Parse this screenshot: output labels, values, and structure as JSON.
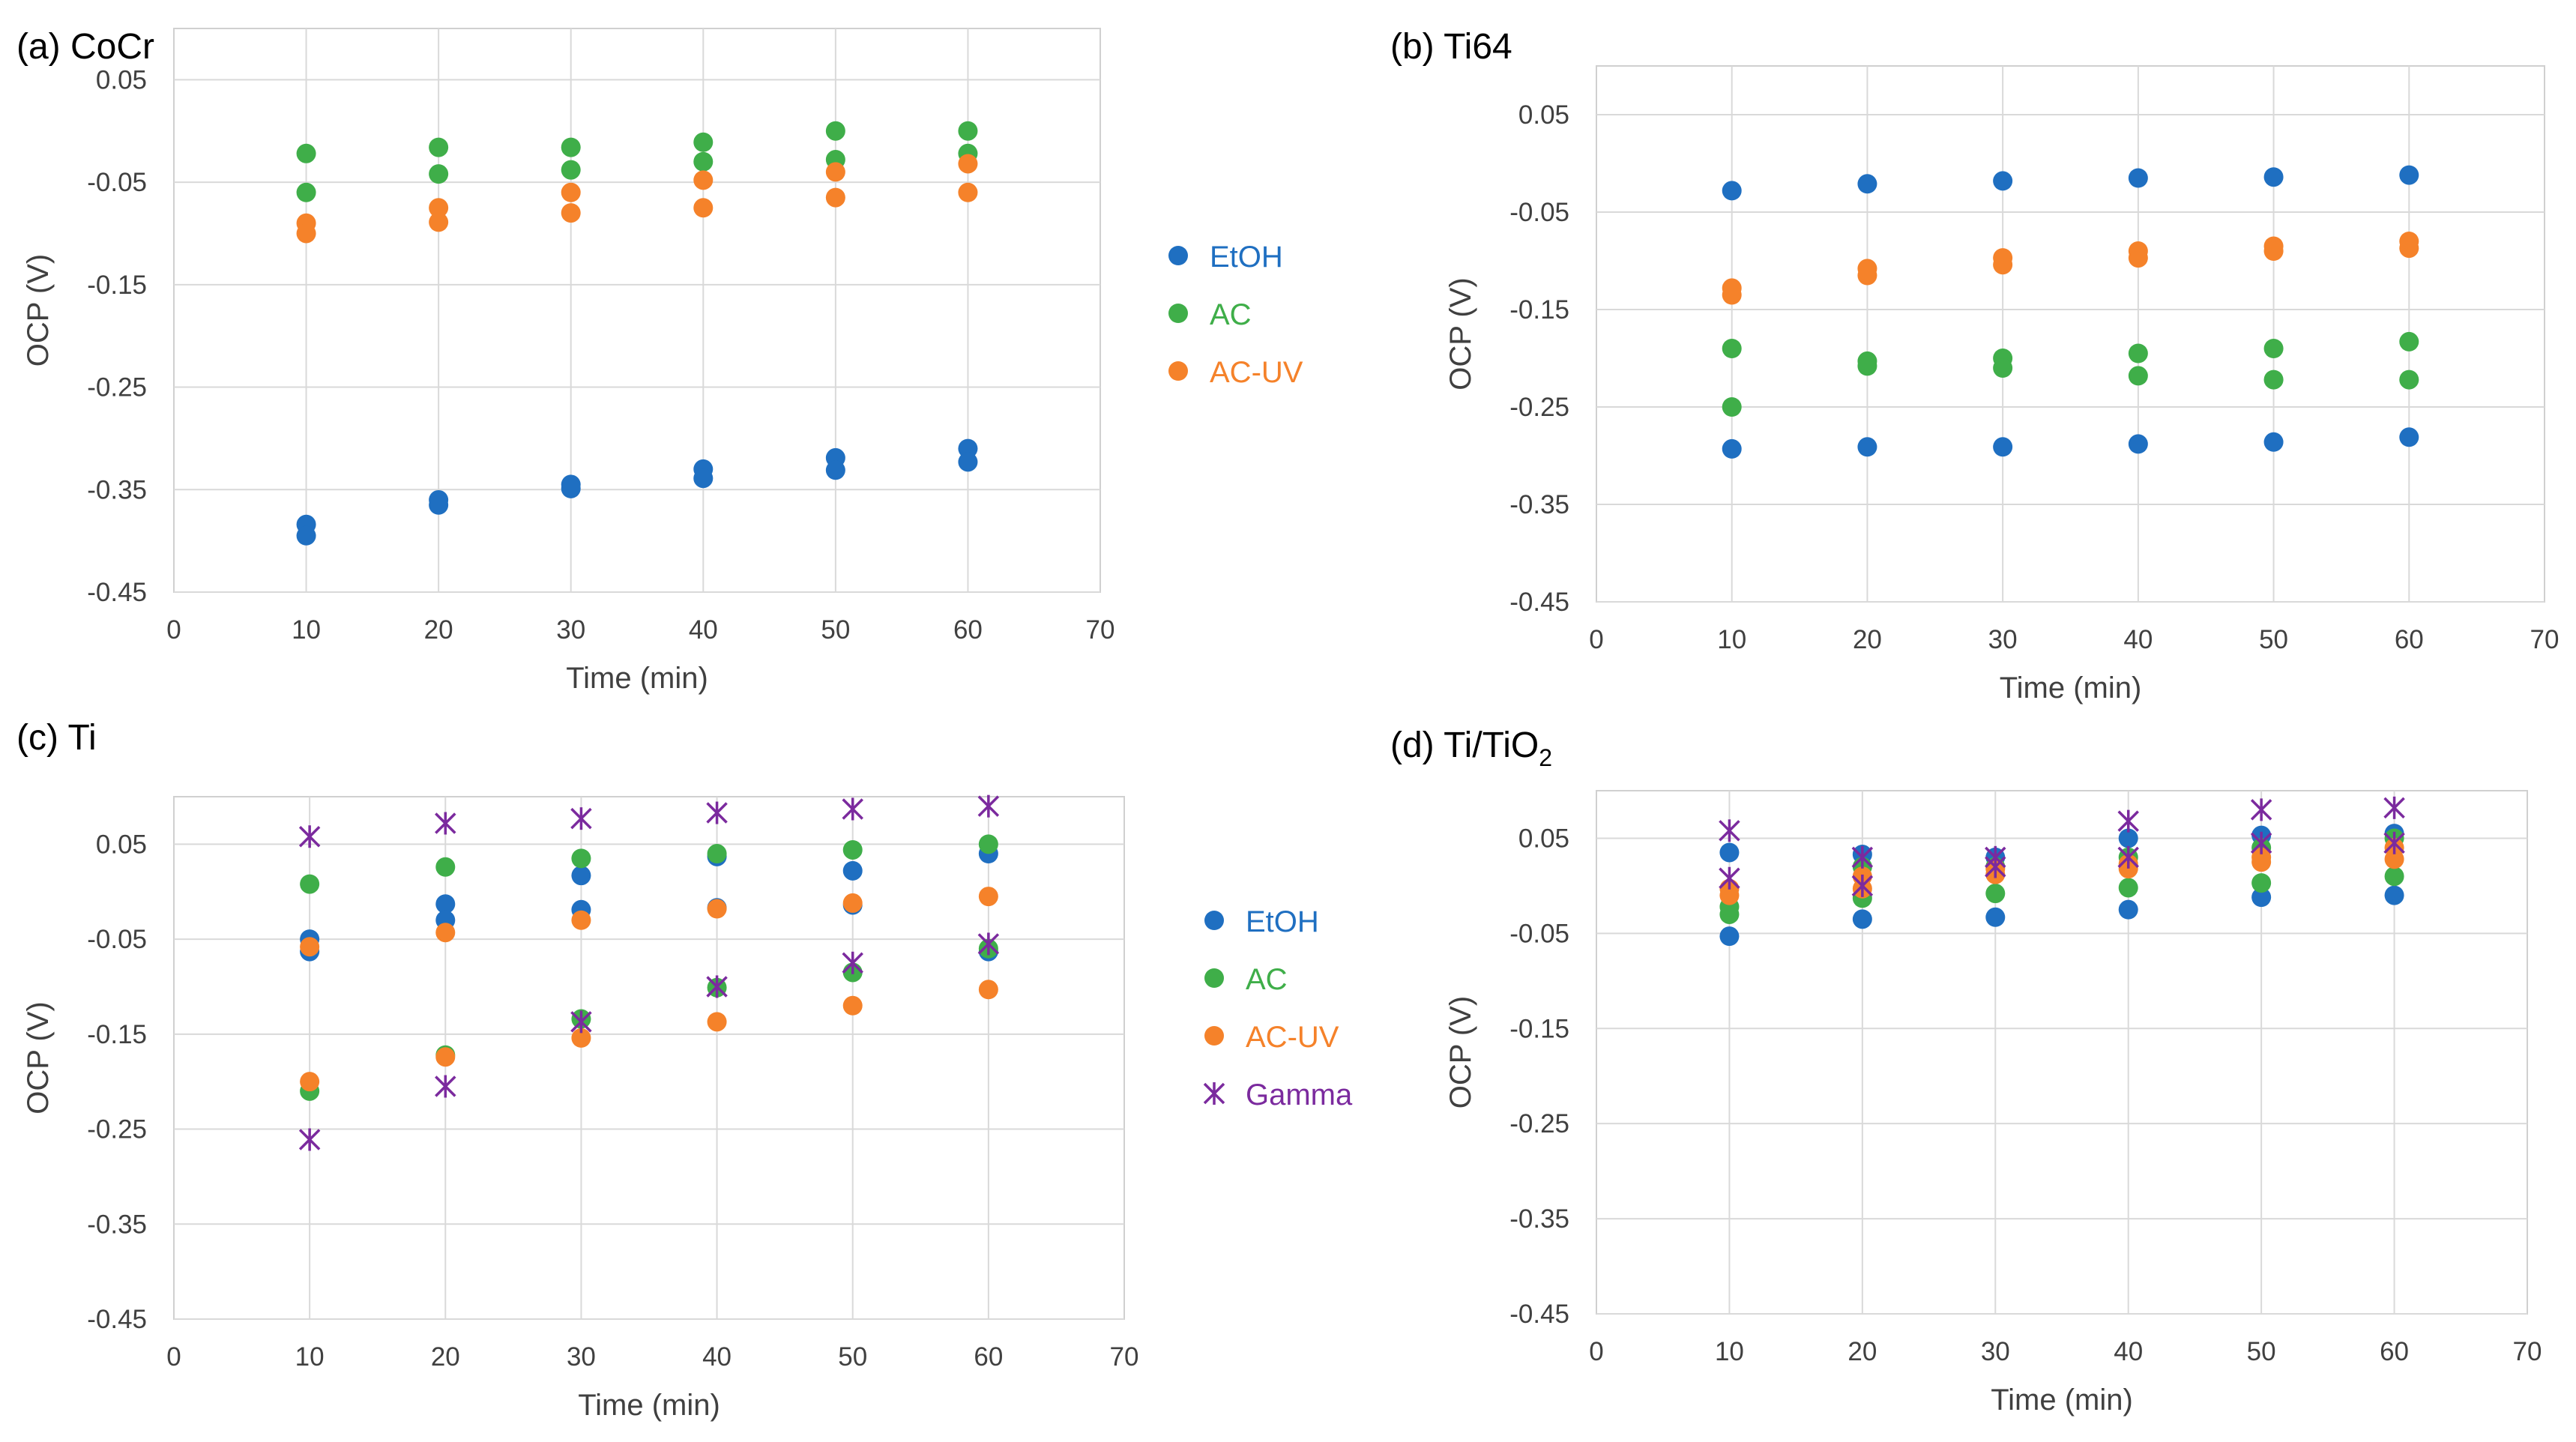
{
  "chart_data": [
    {
      "type": "scatter",
      "id": "a",
      "title": "(a) CoCr",
      "xlabel": "Time (min)",
      "ylabel": "OCP (V)",
      "xlim": [
        0,
        70
      ],
      "ylim": [
        -0.45,
        0.1
      ],
      "xticks": [
        0,
        10,
        20,
        30,
        40,
        50,
        60,
        70
      ],
      "yticks": [
        0.05,
        -0.05,
        -0.15,
        -0.25,
        -0.35,
        -0.45
      ],
      "grid": true,
      "legend": "right",
      "series": [
        {
          "name": "EtOH",
          "color": "#1f6fc1",
          "marker": "circle",
          "points": [
            [
              10,
              -0.384
            ],
            [
              10,
              -0.395
            ],
            [
              20,
              -0.36
            ],
            [
              20,
              -0.365
            ],
            [
              30,
              -0.345
            ],
            [
              30,
              -0.349
            ],
            [
              40,
              -0.33
            ],
            [
              40,
              -0.339
            ],
            [
              50,
              -0.319
            ],
            [
              50,
              -0.331
            ],
            [
              60,
              -0.31
            ],
            [
              60,
              -0.323
            ]
          ]
        },
        {
          "name": "AC",
          "color": "#3fae49",
          "marker": "circle",
          "points": [
            [
              10,
              -0.022
            ],
            [
              10,
              -0.06
            ],
            [
              20,
              -0.016
            ],
            [
              20,
              -0.042
            ],
            [
              30,
              -0.016
            ],
            [
              30,
              -0.038
            ],
            [
              40,
              -0.011
            ],
            [
              40,
              -0.03
            ],
            [
              50,
              0.0
            ],
            [
              50,
              -0.028
            ],
            [
              60,
              0.0
            ],
            [
              60,
              -0.022
            ]
          ]
        },
        {
          "name": "AC-UV",
          "color": "#f5822a",
          "marker": "circle",
          "points": [
            [
              10,
              -0.09
            ],
            [
              10,
              -0.1
            ],
            [
              20,
              -0.075
            ],
            [
              20,
              -0.089
            ],
            [
              30,
              -0.06
            ],
            [
              30,
              -0.08
            ],
            [
              40,
              -0.048
            ],
            [
              40,
              -0.075
            ],
            [
              50,
              -0.04
            ],
            [
              50,
              -0.065
            ],
            [
              60,
              -0.032
            ],
            [
              60,
              -0.06
            ]
          ]
        }
      ]
    },
    {
      "type": "scatter",
      "id": "b",
      "title": "(b)  Ti64",
      "xlabel": "Time (min)",
      "ylabel": "OCP (V)",
      "xlim": [
        0,
        70
      ],
      "ylim": [
        -0.45,
        0.1
      ],
      "xticks": [
        0,
        10,
        20,
        30,
        40,
        50,
        60,
        70
      ],
      "yticks": [
        0.05,
        -0.05,
        -0.15,
        -0.25,
        -0.35,
        -0.45
      ],
      "grid": true,
      "legend": "none",
      "series": [
        {
          "name": "EtOH",
          "color": "#1f6fc1",
          "marker": "circle",
          "points": [
            [
              10,
              -0.028
            ],
            [
              10,
              -0.293
            ],
            [
              20,
              -0.021
            ],
            [
              20,
              -0.291
            ],
            [
              30,
              -0.018
            ],
            [
              30,
              -0.291
            ],
            [
              40,
              -0.015
            ],
            [
              40,
              -0.288
            ],
            [
              50,
              -0.014
            ],
            [
              50,
              -0.286
            ],
            [
              60,
              -0.012
            ],
            [
              60,
              -0.281
            ]
          ]
        },
        {
          "name": "AC",
          "color": "#3fae49",
          "marker": "circle",
          "points": [
            [
              10,
              -0.19
            ],
            [
              10,
              -0.25
            ],
            [
              20,
              -0.203
            ],
            [
              20,
              -0.208
            ],
            [
              30,
              -0.2
            ],
            [
              30,
              -0.21
            ],
            [
              40,
              -0.195
            ],
            [
              40,
              -0.218
            ],
            [
              50,
              -0.19
            ],
            [
              50,
              -0.222
            ],
            [
              60,
              -0.183
            ],
            [
              60,
              -0.222
            ]
          ]
        },
        {
          "name": "AC-UV",
          "color": "#f5822a",
          "marker": "circle",
          "points": [
            [
              10,
              -0.128
            ],
            [
              10,
              -0.135
            ],
            [
              20,
              -0.108
            ],
            [
              20,
              -0.115
            ],
            [
              30,
              -0.097
            ],
            [
              30,
              -0.104
            ],
            [
              40,
              -0.09
            ],
            [
              40,
              -0.097
            ],
            [
              50,
              -0.085
            ],
            [
              50,
              -0.09
            ],
            [
              60,
              -0.08
            ],
            [
              60,
              -0.087
            ]
          ]
        }
      ]
    },
    {
      "type": "scatter",
      "id": "c",
      "title": "(c)  Ti",
      "xlabel": "Time (min)",
      "ylabel": "OCP (V)",
      "xlim": [
        0,
        70
      ],
      "ylim": [
        -0.45,
        0.1
      ],
      "xticks": [
        0,
        10,
        20,
        30,
        40,
        50,
        60,
        70
      ],
      "yticks": [
        0.05,
        -0.05,
        -0.15,
        -0.25,
        -0.35,
        -0.45
      ],
      "grid": true,
      "legend": "right",
      "series": [
        {
          "name": "EtOH",
          "color": "#1f6fc1",
          "marker": "circle",
          "points": [
            [
              10,
              -0.05
            ],
            [
              10,
              -0.063
            ],
            [
              20,
              -0.013
            ],
            [
              20,
              -0.03
            ],
            [
              30,
              0.017
            ],
            [
              30,
              -0.019
            ],
            [
              40,
              0.037
            ],
            [
              40,
              -0.017
            ],
            [
              50,
              0.022
            ],
            [
              50,
              -0.014
            ],
            [
              60,
              0.04
            ],
            [
              60,
              -0.063
            ]
          ]
        },
        {
          "name": "AC",
          "color": "#3fae49",
          "marker": "circle",
          "points": [
            [
              10,
              0.008
            ],
            [
              10,
              -0.21
            ],
            [
              20,
              0.026
            ],
            [
              20,
              -0.172
            ],
            [
              30,
              0.035
            ],
            [
              30,
              -0.134
            ],
            [
              40,
              0.04
            ],
            [
              40,
              -0.101
            ],
            [
              50,
              0.044
            ],
            [
              50,
              -0.085
            ],
            [
              60,
              0.05
            ],
            [
              60,
              -0.06
            ]
          ]
        },
        {
          "name": "AC-UV",
          "color": "#f5822a",
          "marker": "circle",
          "points": [
            [
              10,
              -0.058
            ],
            [
              10,
              -0.2
            ],
            [
              20,
              -0.043
            ],
            [
              20,
              -0.174
            ],
            [
              30,
              -0.03
            ],
            [
              30,
              -0.154
            ],
            [
              40,
              -0.018
            ],
            [
              40,
              -0.137
            ],
            [
              50,
              -0.012
            ],
            [
              50,
              -0.12
            ],
            [
              60,
              -0.005
            ],
            [
              60,
              -0.103
            ]
          ]
        },
        {
          "name": "Gamma",
          "color": "#7b2a9e",
          "marker": "asterisk",
          "points": [
            [
              10,
              0.058
            ],
            [
              10,
              -0.261
            ],
            [
              20,
              0.072
            ],
            [
              20,
              -0.205
            ],
            [
              30,
              0.077
            ],
            [
              30,
              -0.137
            ],
            [
              40,
              0.083
            ],
            [
              40,
              -0.1
            ],
            [
              50,
              0.087
            ],
            [
              50,
              -0.075
            ],
            [
              60,
              0.09
            ],
            [
              60,
              -0.055
            ]
          ]
        }
      ]
    },
    {
      "type": "scatter",
      "id": "d",
      "title_main": "(d)  Ti/TiO",
      "title_sub": "2",
      "xlabel": "Time (min)",
      "ylabel": "OCP (V)",
      "xlim": [
        0,
        70
      ],
      "ylim": [
        -0.45,
        0.1
      ],
      "xticks": [
        0,
        10,
        20,
        30,
        40,
        50,
        60,
        70
      ],
      "yticks": [
        0.05,
        -0.05,
        -0.15,
        -0.25,
        -0.35,
        -0.45
      ],
      "grid": true,
      "legend": "none",
      "series": [
        {
          "name": "EtOH",
          "color": "#1f6fc1",
          "marker": "circle",
          "points": [
            [
              10,
              -0.053
            ],
            [
              10,
              0.035
            ],
            [
              20,
              -0.035
            ],
            [
              20,
              0.033
            ],
            [
              30,
              -0.033
            ],
            [
              30,
              0.03
            ],
            [
              40,
              -0.025
            ],
            [
              40,
              0.05
            ],
            [
              50,
              -0.012
            ],
            [
              50,
              0.053
            ],
            [
              60,
              -0.01
            ],
            [
              60,
              0.055
            ]
          ]
        },
        {
          "name": "AC",
          "color": "#3fae49",
          "marker": "circle",
          "points": [
            [
              10,
              -0.03
            ],
            [
              10,
              -0.022
            ],
            [
              20,
              -0.013
            ],
            [
              20,
              0.02
            ],
            [
              30,
              -0.008
            ],
            [
              30,
              0.02
            ],
            [
              40,
              -0.002
            ],
            [
              40,
              0.03
            ],
            [
              50,
              0.003
            ],
            [
              50,
              0.04
            ],
            [
              60,
              0.01
            ],
            [
              60,
              0.05
            ]
          ]
        },
        {
          "name": "AC-UV",
          "color": "#f5822a",
          "marker": "circle",
          "points": [
            [
              10,
              -0.01
            ],
            [
              10,
              -0.003
            ],
            [
              20,
              -0.003
            ],
            [
              20,
              0.01
            ],
            [
              30,
              0.012
            ],
            [
              30,
              0.018
            ],
            [
              40,
              0.018
            ],
            [
              40,
              0.023
            ],
            [
              50,
              0.025
            ],
            [
              50,
              0.03
            ],
            [
              60,
              0.028
            ],
            [
              60,
              0.04
            ]
          ]
        },
        {
          "name": "Gamma",
          "color": "#7b2a9e",
          "marker": "asterisk",
          "points": [
            [
              10,
              0.058
            ],
            [
              10,
              0.008
            ],
            [
              20,
              0.03
            ],
            [
              20,
              0.0
            ],
            [
              30,
              0.03
            ],
            [
              30,
              0.02
            ],
            [
              40,
              0.068
            ],
            [
              40,
              0.03
            ],
            [
              50,
              0.08
            ],
            [
              50,
              0.045
            ],
            [
              60,
              0.082
            ],
            [
              60,
              0.045
            ]
          ]
        }
      ]
    }
  ]
}
